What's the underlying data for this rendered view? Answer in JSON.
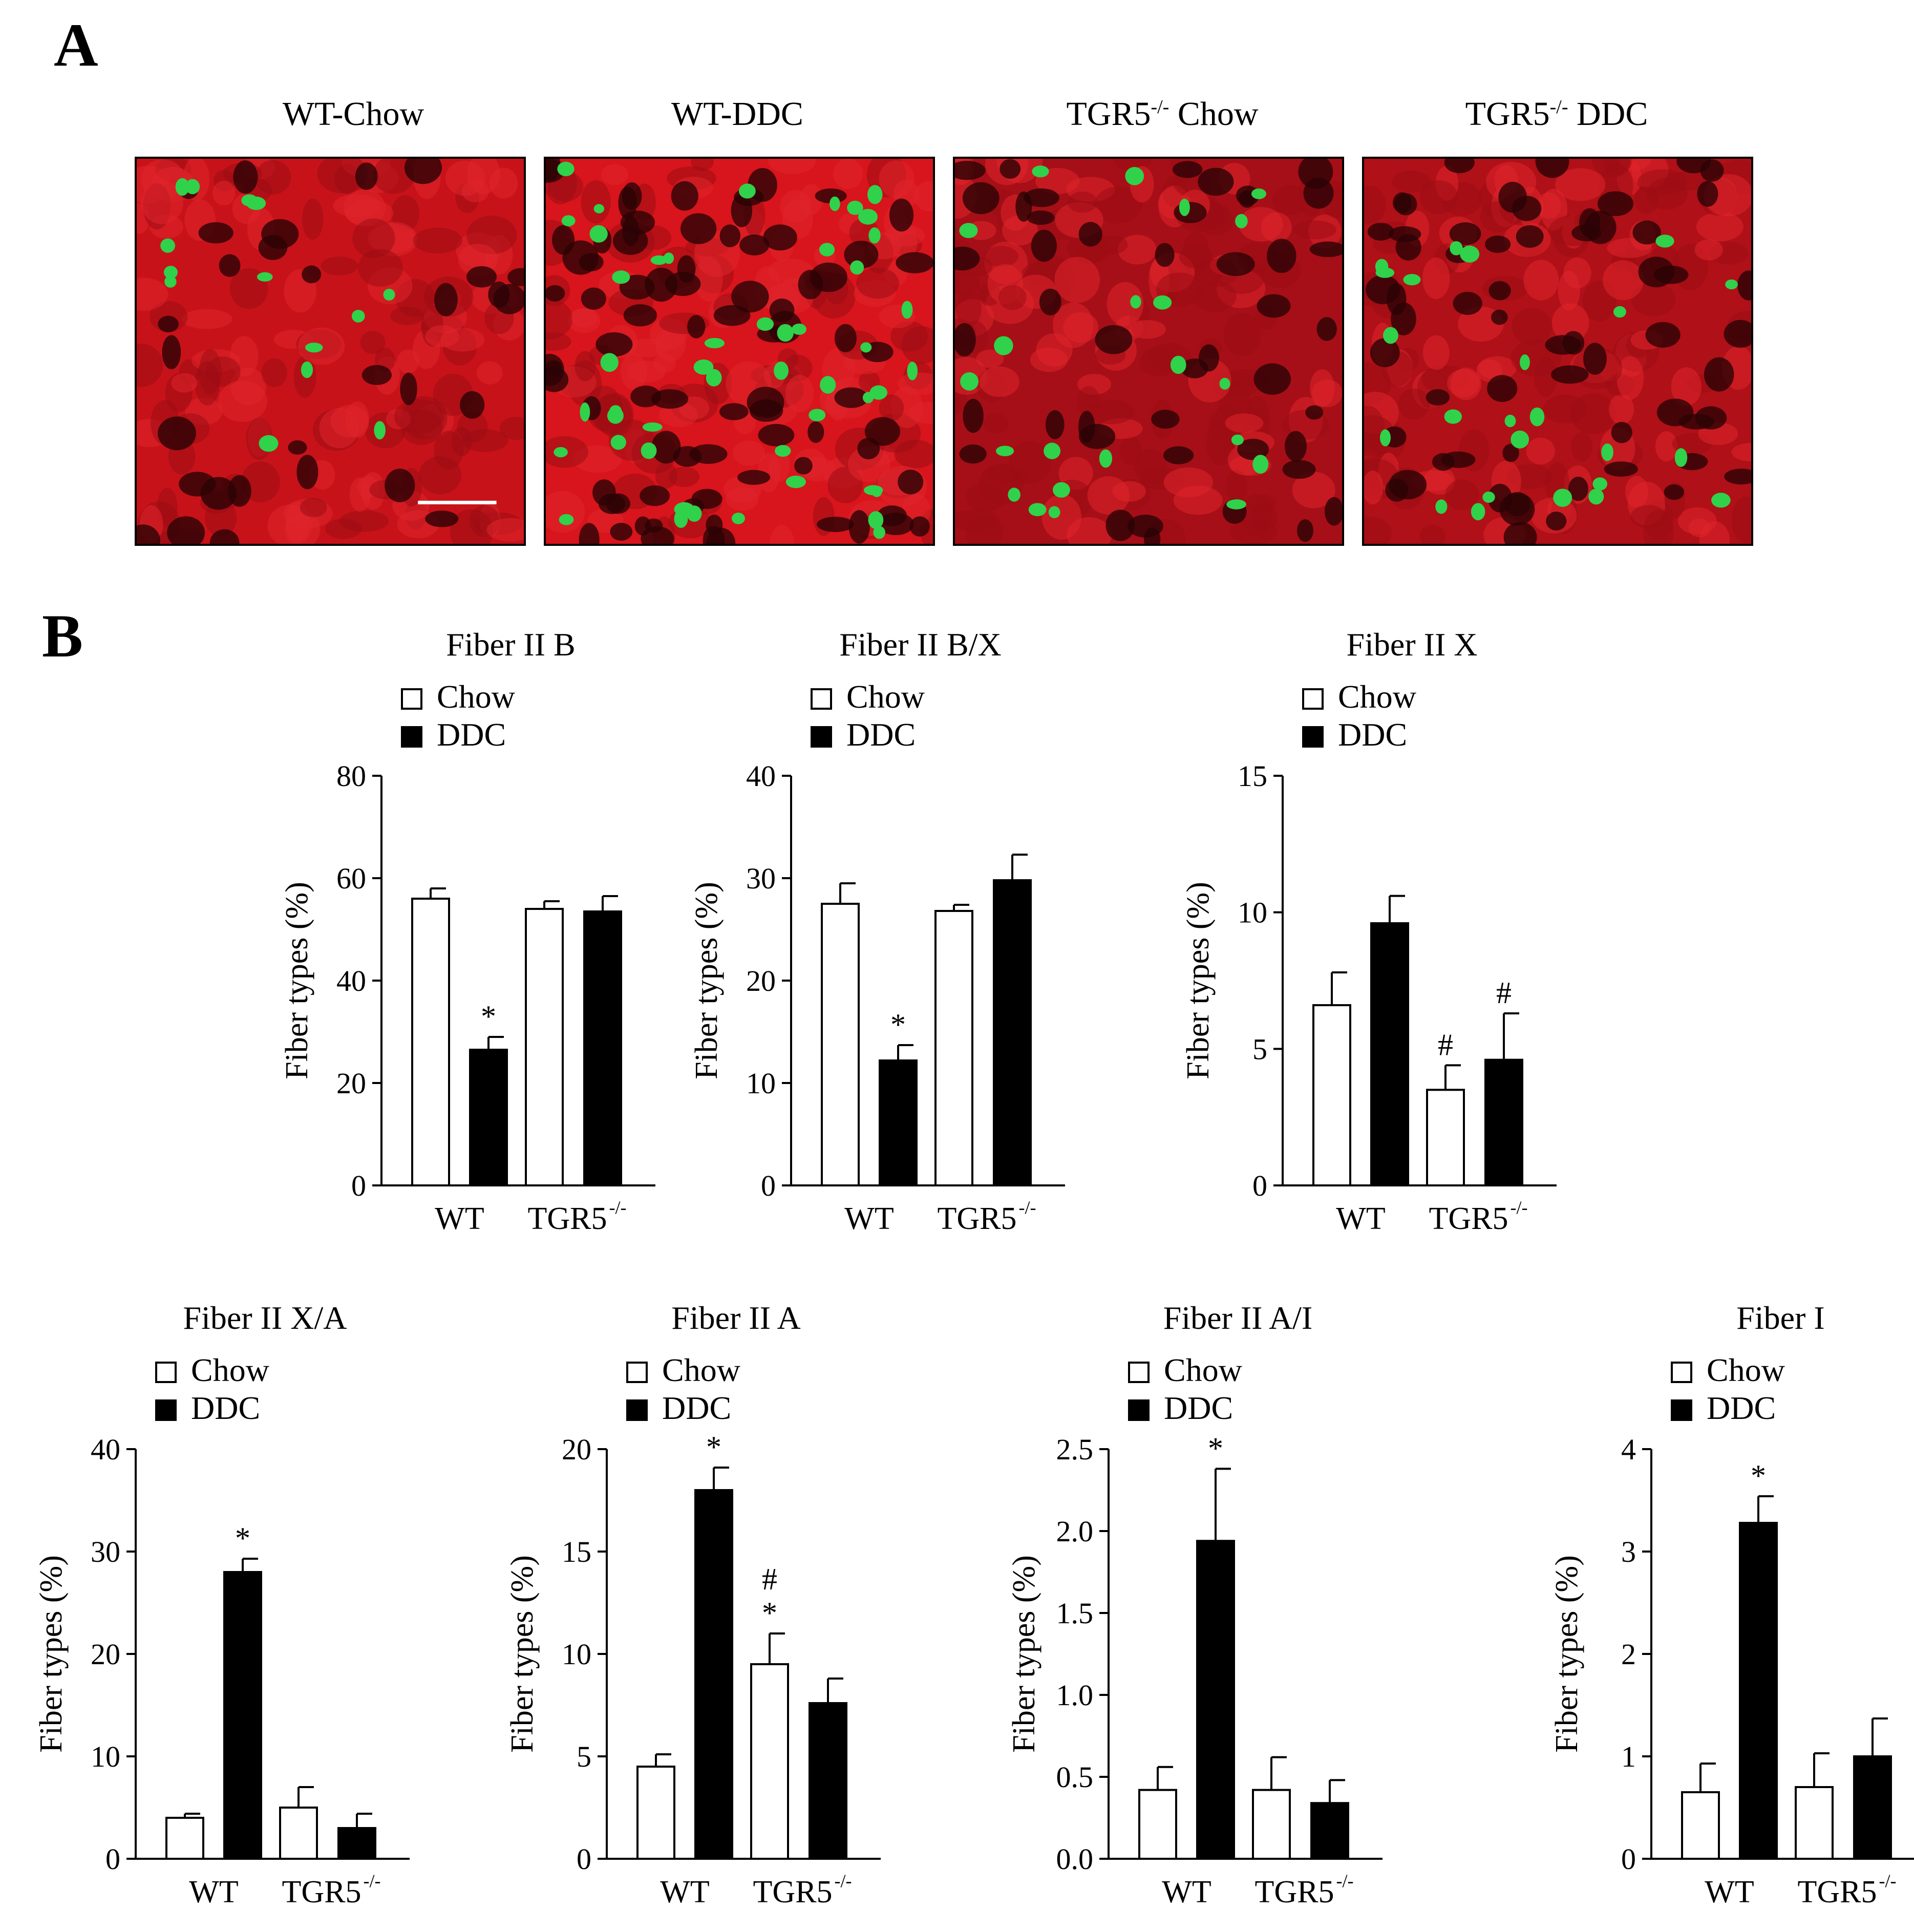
{
  "panel_a": {
    "label": "A",
    "images": [
      {
        "title_main": "WT-Chow",
        "title_sup": "",
        "title_tail": "",
        "bg": "#c8121a",
        "green_count": 14,
        "dark_count": 30,
        "seed": 3
      },
      {
        "title_main": "WT-DDC",
        "title_sup": "",
        "title_tail": "",
        "bg": "#d8141c",
        "green_count": 48,
        "dark_count": 80,
        "seed": 11
      },
      {
        "title_main": "TGR5",
        "title_sup": "-/-",
        "title_tail": " Chow",
        "bg": "#a60f17",
        "green_count": 22,
        "dark_count": 45,
        "seed": 7
      },
      {
        "title_main": "TGR5",
        "title_sup": "-/-",
        "title_tail": " DDC",
        "bg": "#b01018",
        "green_count": 24,
        "dark_count": 60,
        "seed": 19
      }
    ]
  },
  "panel_b": {
    "label": "B"
  },
  "legend": {
    "chow": "Chow",
    "ddc": "DDC"
  },
  "chart_data": [
    {
      "type": "bar",
      "title": "Fiber II B",
      "ylabel": "Fiber types (%)",
      "ylim": [
        0,
        80
      ],
      "yticks": [
        "0",
        "20",
        "40",
        "60",
        "80"
      ],
      "categories": [
        "WT",
        "TGR5"
      ],
      "category_sup": [
        "",
        "-/-"
      ],
      "series": [
        {
          "name": "Chow",
          "values": [
            56,
            54
          ],
          "errors": [
            2,
            1.5
          ]
        },
        {
          "name": "DDC",
          "values": [
            26.5,
            53.5
          ],
          "errors": [
            2.5,
            3
          ]
        }
      ],
      "annotations": [
        {
          "series": 1,
          "category": 0,
          "text": "*"
        }
      ]
    },
    {
      "type": "bar",
      "title": "Fiber II B/X",
      "ylabel": "Fiber types (%)",
      "ylim": [
        0,
        40
      ],
      "yticks": [
        "0",
        "10",
        "20",
        "30",
        "40"
      ],
      "categories": [
        "WT",
        "TGR5"
      ],
      "category_sup": [
        "",
        "-/-"
      ],
      "series": [
        {
          "name": "Chow",
          "values": [
            27.5,
            26.8
          ],
          "errors": [
            2,
            0.6
          ]
        },
        {
          "name": "DDC",
          "values": [
            12.2,
            29.8
          ],
          "errors": [
            1.5,
            2.5
          ]
        }
      ],
      "annotations": [
        {
          "series": 1,
          "category": 0,
          "text": "*"
        }
      ]
    },
    {
      "type": "bar",
      "title": "Fiber II X",
      "ylabel": "Fiber types (%)",
      "ylim": [
        0,
        15
      ],
      "yticks": [
        "0",
        "5",
        "10",
        "15"
      ],
      "categories": [
        "WT",
        "TGR5"
      ],
      "category_sup": [
        "",
        "-/-"
      ],
      "series": [
        {
          "name": "Chow",
          "values": [
            6.6,
            3.5
          ],
          "errors": [
            1.2,
            0.9
          ]
        },
        {
          "name": "DDC",
          "values": [
            9.6,
            4.6
          ],
          "errors": [
            1,
            1.7
          ]
        }
      ],
      "annotations": [
        {
          "series": 0,
          "category": 1,
          "text": "#"
        },
        {
          "series": 1,
          "category": 1,
          "text": "#"
        }
      ]
    },
    {
      "type": "bar",
      "title": "Fiber II X/A",
      "ylabel": "Fiber types (%)",
      "ylim": [
        0,
        40
      ],
      "yticks": [
        "0",
        "10",
        "20",
        "30",
        "40"
      ],
      "categories": [
        "WT",
        "TGR5"
      ],
      "category_sup": [
        "",
        "-/-"
      ],
      "series": [
        {
          "name": "Chow",
          "values": [
            4,
            5
          ],
          "errors": [
            0.4,
            2
          ]
        },
        {
          "name": "DDC",
          "values": [
            28,
            3
          ],
          "errors": [
            1.3,
            1.4
          ]
        }
      ],
      "annotations": [
        {
          "series": 1,
          "category": 0,
          "text": "*"
        }
      ]
    },
    {
      "type": "bar",
      "title": "Fiber II A",
      "ylabel": "Fiber types (%)",
      "ylim": [
        0,
        20
      ],
      "yticks": [
        "0",
        "5",
        "10",
        "15",
        "20"
      ],
      "categories": [
        "WT",
        "TGR5"
      ],
      "category_sup": [
        "",
        "-/-"
      ],
      "series": [
        {
          "name": "Chow",
          "values": [
            4.5,
            9.5
          ],
          "errors": [
            0.6,
            1.5
          ]
        },
        {
          "name": "DDC",
          "values": [
            18,
            7.6
          ],
          "errors": [
            1.1,
            1.2
          ]
        }
      ],
      "annotations": [
        {
          "series": 1,
          "category": 0,
          "text": "*"
        },
        {
          "series": 0,
          "category": 1,
          "text": "*"
        },
        {
          "series": 0,
          "category": 1,
          "text": "#"
        }
      ]
    },
    {
      "type": "bar",
      "title": "Fiber II A/I",
      "ylabel": "Fiber types (%)",
      "ylim": [
        0,
        2.5
      ],
      "yticks": [
        "0.0",
        "0.5",
        "1.0",
        "1.5",
        "2.0",
        "2.5"
      ],
      "categories": [
        "WT",
        "TGR5"
      ],
      "category_sup": [
        "",
        "-/-"
      ],
      "series": [
        {
          "name": "Chow",
          "values": [
            0.42,
            0.42
          ],
          "errors": [
            0.14,
            0.2
          ]
        },
        {
          "name": "DDC",
          "values": [
            1.94,
            0.34
          ],
          "errors": [
            0.44,
            0.14
          ]
        }
      ],
      "annotations": [
        {
          "series": 1,
          "category": 0,
          "text": "*"
        }
      ]
    },
    {
      "type": "bar",
      "title": "Fiber I",
      "ylabel": "Fiber types (%)",
      "ylim": [
        0,
        4
      ],
      "yticks": [
        "0",
        "1",
        "2",
        "3",
        "4"
      ],
      "categories": [
        "WT",
        "TGR5"
      ],
      "category_sup": [
        "",
        "-/-"
      ],
      "series": [
        {
          "name": "Chow",
          "values": [
            0.65,
            0.7
          ],
          "errors": [
            0.28,
            0.33
          ]
        },
        {
          "name": "DDC",
          "values": [
            3.28,
            1.0
          ],
          "errors": [
            0.26,
            0.37
          ]
        }
      ],
      "annotations": [
        {
          "series": 1,
          "category": 0,
          "text": "*"
        }
      ]
    }
  ]
}
